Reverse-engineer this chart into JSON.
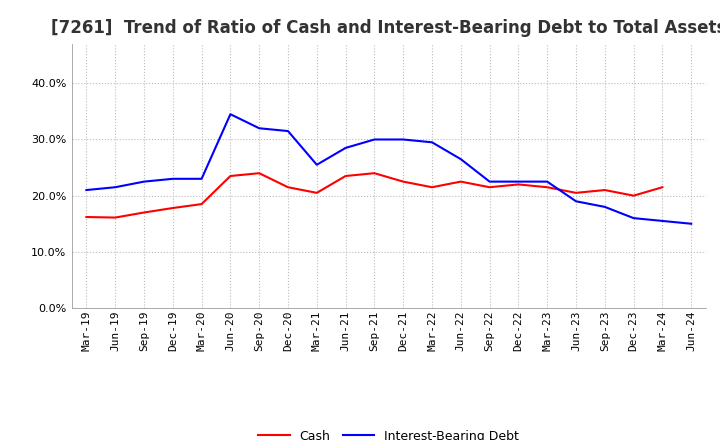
{
  "title": "[7261]  Trend of Ratio of Cash and Interest-Bearing Debt to Total Assets",
  "labels": [
    "Mar-19",
    "Jun-19",
    "Sep-19",
    "Dec-19",
    "Mar-20",
    "Jun-20",
    "Sep-20",
    "Dec-20",
    "Mar-21",
    "Jun-21",
    "Sep-21",
    "Dec-21",
    "Mar-22",
    "Jun-22",
    "Sep-22",
    "Dec-22",
    "Mar-23",
    "Jun-23",
    "Sep-23",
    "Dec-23",
    "Mar-24",
    "Jun-24"
  ],
  "cash": [
    16.2,
    16.1,
    17.0,
    17.8,
    18.5,
    23.5,
    24.0,
    21.5,
    20.5,
    23.5,
    24.0,
    22.5,
    21.5,
    22.5,
    21.5,
    22.0,
    21.5,
    20.5,
    21.0,
    20.0,
    21.5,
    null
  ],
  "ibd": [
    21.0,
    21.5,
    22.5,
    23.0,
    23.0,
    34.5,
    32.0,
    31.5,
    25.5,
    28.5,
    30.0,
    30.0,
    29.5,
    26.5,
    22.5,
    22.5,
    22.5,
    19.0,
    18.0,
    16.0,
    15.5,
    15.0
  ],
  "cash_color": "#ff0000",
  "ibd_color": "#0000ff",
  "ylim": [
    0.0,
    47.0
  ],
  "yticks": [
    0.0,
    10.0,
    20.0,
    30.0,
    40.0
  ],
  "background_color": "#ffffff",
  "plot_bg_color": "#ffffff",
  "grid_color": "#bbbbbb",
  "title_fontsize": 12,
  "title_color": "#333333",
  "tick_fontsize": 8,
  "legend_cash": "Cash",
  "legend_ibd": "Interest-Bearing Debt",
  "line_width": 1.5
}
